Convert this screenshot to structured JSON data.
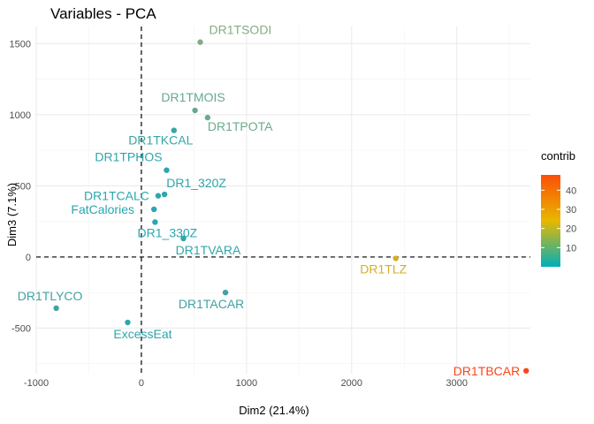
{
  "chart_data": {
    "type": "scatter",
    "title": "Variables - PCA",
    "xlabel": "Dim2 (21.4%)",
    "ylabel": "Dim3 (7.1%)",
    "xlim": [
      -1000,
      3700
    ],
    "ylim": [
      -820,
      1620
    ],
    "x_ticks": [
      -1000,
      0,
      1000,
      2000,
      3000
    ],
    "y_ticks": [
      -500,
      0,
      500,
      1000,
      1500
    ],
    "grid": true,
    "reference_lines": {
      "x": 0,
      "y": 0,
      "style": "dashed"
    },
    "legend": {
      "title": "contrib",
      "position": "right",
      "ticks": [
        10,
        20,
        30,
        40
      ],
      "range": [
        0,
        48
      ],
      "colors": [
        "#00AFBB",
        "#E7B800",
        "#FC4E07"
      ]
    },
    "points": [
      {
        "label": "DR1TSODI",
        "x": 560,
        "y": 1510,
        "contrib": 7,
        "color": "#83AC84"
      },
      {
        "label": "DR1TMOIS",
        "x": 510,
        "y": 1030,
        "contrib": 6,
        "color": "#64A98F"
      },
      {
        "label": "DR1TPOTA",
        "x": 630,
        "y": 980,
        "contrib": 6,
        "color": "#6AAB8C"
      },
      {
        "label": "DR1TKCAL",
        "x": 310,
        "y": 890,
        "contrib": 3,
        "color": "#38A5A5"
      },
      {
        "label": "DR1TPHOS",
        "x": 240,
        "y": 610,
        "contrib": 2,
        "color": "#2EA6AC"
      },
      {
        "label": "DR1TCALC",
        "x": 160,
        "y": 430,
        "contrib": 2,
        "color": "#2DA6AC"
      },
      {
        "label": "DR1_320Z",
        "x": 220,
        "y": 440,
        "contrib": 2,
        "color": "#2EA6AC"
      },
      {
        "label": "FatCalories",
        "x": 120,
        "y": 335,
        "contrib": 1,
        "color": "#27A7B0"
      },
      {
        "label": "DR1_330Z",
        "x": 130,
        "y": 245,
        "contrib": 1,
        "color": "#27A7B0"
      },
      {
        "label": "DR1TVARA",
        "x": 400,
        "y": 130,
        "contrib": 2,
        "color": "#33A6A9"
      },
      {
        "label": "DR1TLZ",
        "x": 2420,
        "y": -10,
        "contrib": 22,
        "color": "#D6AE22"
      },
      {
        "label": "DR1TACAR",
        "x": 800,
        "y": -250,
        "contrib": 3,
        "color": "#3FA3A1"
      },
      {
        "label": "DR1TLYCO",
        "x": -810,
        "y": -360,
        "contrib": 4,
        "color": "#3FA4A1"
      },
      {
        "label": "ExcessEat",
        "x": -130,
        "y": -460,
        "contrib": 2,
        "color": "#2EA6AC"
      },
      {
        "label": "DR1TBCAR",
        "x": 3660,
        "y": -800,
        "contrib": 46,
        "color": "#F9461B"
      }
    ]
  }
}
